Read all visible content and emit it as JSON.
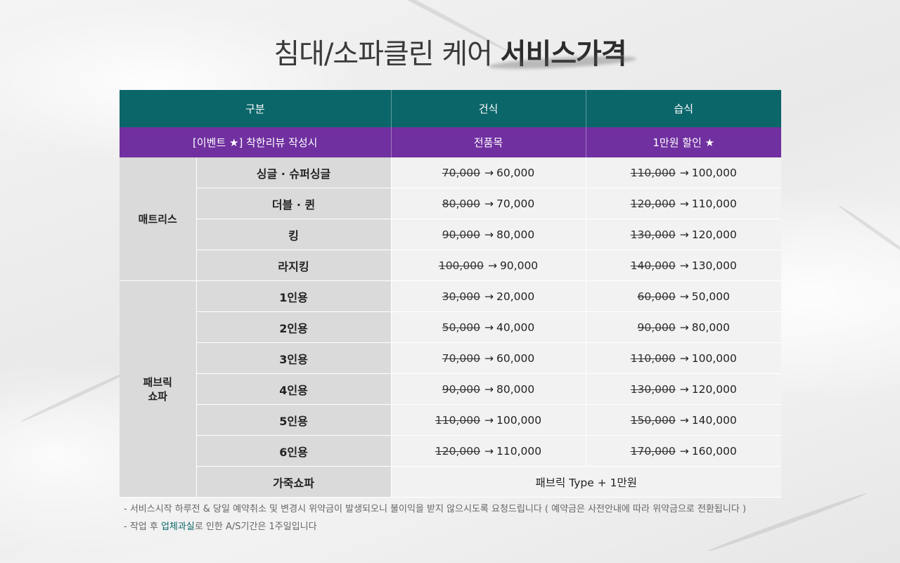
{
  "title": {
    "regular": "침대/소파클린 케어",
    "bold": "서비스가격"
  },
  "table": {
    "headers": [
      "구분",
      "건식",
      "습식"
    ],
    "event_row": {
      "label": "[이벤트 ★] 착한리뷰 작성시",
      "dry": "전품목",
      "wet": "1만원 할인  ★"
    },
    "arrow": "→",
    "categories": [
      {
        "name": "매트리스",
        "items": [
          {
            "name": "싱글 · 슈퍼싱글",
            "dry_old": "70,000",
            "dry_new": "60,000",
            "wet_old": "110,000",
            "wet_new": "100,000"
          },
          {
            "name": "더블 · 퀸",
            "dry_old": "80,000",
            "dry_new": "70,000",
            "wet_old": "120,000",
            "wet_new": "110,000"
          },
          {
            "name": "킹",
            "dry_old": "90,000",
            "dry_new": "80,000",
            "wet_old": "130,000",
            "wet_new": "120,000"
          },
          {
            "name": "라지킹",
            "dry_old": "100,000",
            "dry_new": "90,000",
            "wet_old": "140,000",
            "wet_new": "130,000"
          }
        ]
      },
      {
        "name_line1": "패브릭",
        "name_line2": "쇼파",
        "items": [
          {
            "name": "1인용",
            "dry_old": "30,000",
            "dry_new": "20,000",
            "wet_old": "60,000",
            "wet_new": "50,000"
          },
          {
            "name": "2인용",
            "dry_old": "50,000",
            "dry_new": "40,000",
            "wet_old": "90,000",
            "wet_new": "80,000"
          },
          {
            "name": "3인용",
            "dry_old": "70,000",
            "dry_new": "60,000",
            "wet_old": "110,000",
            "wet_new": "100,000"
          },
          {
            "name": "4인용",
            "dry_old": "90,000",
            "dry_new": "80,000",
            "wet_old": "130,000",
            "wet_new": "120,000"
          },
          {
            "name": "5인용",
            "dry_old": "110,000",
            "dry_new": "100,000",
            "wet_old": "150,000",
            "wet_new": "140,000"
          },
          {
            "name": "6인용",
            "dry_old": "120,000",
            "dry_new": "110,000",
            "wet_old": "170,000",
            "wet_new": "160,000"
          }
        ],
        "leather": {
          "name": "가죽쇼파",
          "value": "패브릭 Type  + 1만원"
        }
      }
    ]
  },
  "notes": {
    "line1": "- 서비스시작 하루전 & 당일 예약취소 및 변경시 위약금이 발생되오니 불이익을 받지 않으시도록 요청드립니다 ( 예약금은 사전안내에 따라 위약금으로 전환됩니다 )",
    "line2_prefix": "- 작업 후 ",
    "line2_highlight": "업체과실",
    "line2_suffix": "로 인한 A/S기간은 1주일입니다"
  },
  "colors": {
    "header": "#0b6669",
    "event": "#7030a0",
    "label_cell": "#dadada",
    "price_cell": "#f2f2f2"
  }
}
